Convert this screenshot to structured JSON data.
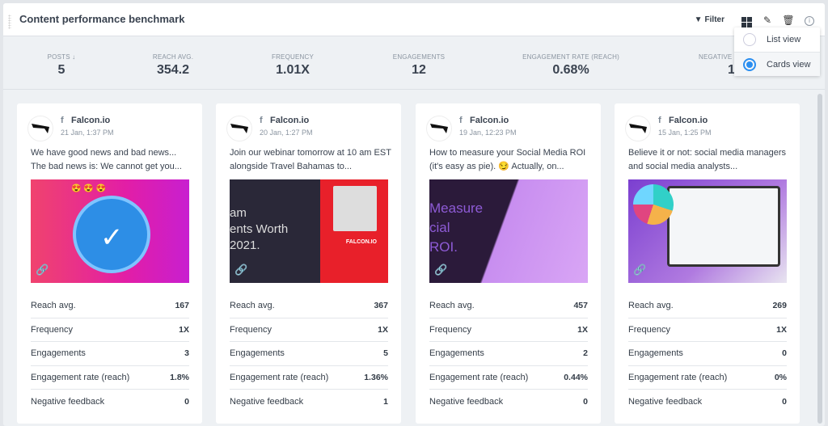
{
  "widget": {
    "title": "Content performance benchmark",
    "filter_label": "Filter"
  },
  "view_menu": {
    "options": [
      {
        "label": "List view",
        "selected": false
      },
      {
        "label": "Cards view",
        "selected": true
      }
    ]
  },
  "stats": [
    {
      "label": "POSTS ↓",
      "value": "5"
    },
    {
      "label": "REACH AVG.",
      "value": "354.2"
    },
    {
      "label": "FREQUENCY",
      "value": "1.01X"
    },
    {
      "label": "ENGAGEMENTS",
      "value": "12"
    },
    {
      "label": "ENGAGEMENT RATE (REACH)",
      "value": "0.68%"
    },
    {
      "label": "NEGATIVE F",
      "value": "1"
    }
  ],
  "metric_labels": [
    "Reach avg.",
    "Frequency",
    "Engagements",
    "Engagement rate (reach)",
    "Negative feedback"
  ],
  "accent": "#2b8ef0",
  "cards": [
    {
      "page": "Falcon.io",
      "network": "f",
      "date": "21 Jan, 1:37 PM",
      "text": "We have good news and bad news... The bad news is: We cannot get you...",
      "values": [
        "167",
        "1X",
        "3",
        "1.8%",
        "0"
      ]
    },
    {
      "page": "Falcon.io",
      "network": "f",
      "date": "20 Jan, 1:27 PM",
      "text": "Join our webinar tomorrow at 10 am EST alongside Travel Bahamas to...",
      "image_text": "am\nents Worth\n2021.",
      "image_logo": "FALCON.IO",
      "values": [
        "367",
        "1X",
        "5",
        "1.36%",
        "1"
      ]
    },
    {
      "page": "Falcon.io",
      "network": "f",
      "date": "19 Jan, 12:23 PM",
      "text": "How to measure your Social Media ROI (it's easy as pie). 😏 Actually, on...",
      "image_text": "Measure\ncial\nROI.",
      "values": [
        "457",
        "1X",
        "2",
        "0.44%",
        "0"
      ]
    },
    {
      "page": "Falcon.io",
      "network": "f",
      "date": "15 Jan, 1:25 PM",
      "text": "Believe it or not: social media managers and social media analysts...",
      "values": [
        "269",
        "1X",
        "0",
        "0%",
        "0"
      ]
    }
  ]
}
